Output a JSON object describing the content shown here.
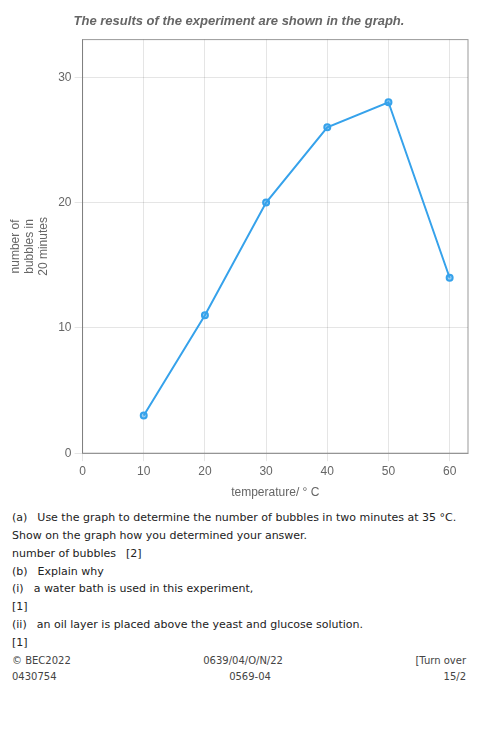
{
  "chart_data": {
    "type": "line",
    "title": "The results of the experiment are shown in the graph.",
    "xlabel": "temperature/ ° C",
    "ylabel": "number of\nbubbles in\n20 minutes",
    "x": [
      10,
      20,
      30,
      40,
      50,
      60
    ],
    "values": [
      3,
      11,
      20,
      26,
      28,
      14
    ],
    "xlim": [
      0,
      63
    ],
    "ylim": [
      0,
      33
    ],
    "xticks": [
      0,
      10,
      20,
      30,
      40,
      50,
      60
    ],
    "yticks": [
      0,
      10,
      20,
      30
    ],
    "grid": true,
    "marker": "circle",
    "annotations": [
      [
        "(a)",
        "Use the graph to determine the number of bubbles in two minutes at 35 °C."
      ],
      [
        "Show on the graph how you determined your answer."
      ],
      [
        "number of bubbles",
        "[2]"
      ],
      [
        "(b)",
        "Explain why"
      ],
      [
        "(i)",
        "a water bath is used in this experiment,"
      ],
      [
        "[1]"
      ],
      [
        "(ii)",
        "an oil layer is placed above the yeast and glucose solution."
      ],
      [
        "[1]"
      ],
      [
        "© BEC2022",
        "0639/04/O/N/22",
        "[Turn over"
      ],
      [
        "0430754",
        "0569-04",
        "15/2"
      ]
    ]
  }
}
